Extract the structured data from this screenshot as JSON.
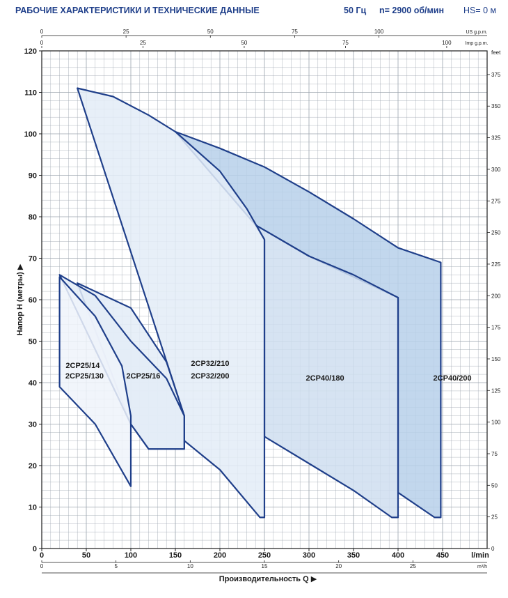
{
  "header": {
    "title": "РАБОЧИЕ ХАРАКТЕРИСТИКИ И ТЕХНИЧЕСКИЕ ДАННЫЕ",
    "frequency": "50 Гц",
    "speed": "n= 2900 об/мин",
    "hs": "HS= 0 м"
  },
  "colors": {
    "outline": "#1f3f8a",
    "fill_light": "#e3ecf7",
    "fill_mid": "#cfdef0",
    "fill_dark": "#b7d0ea",
    "grid": "#9aa3ad",
    "text": "#1f3f8a"
  },
  "chart_data": {
    "type": "area",
    "title": "",
    "xlabel": "Производительность Q",
    "ylabel": "Напор H (метры)",
    "x_unit": "l/min",
    "xlim": [
      0,
      500
    ],
    "ylim": [
      0,
      120
    ],
    "x_ticks": [
      0,
      50,
      100,
      150,
      200,
      250,
      300,
      350,
      400,
      450
    ],
    "y_ticks": [
      0,
      10,
      20,
      30,
      40,
      50,
      60,
      70,
      80,
      90,
      100,
      110,
      120
    ],
    "secondary_axes": {
      "m3h": {
        "label": "m³/h",
        "ticks": [
          0,
          5,
          10,
          15,
          20,
          25
        ]
      },
      "us_gpm": {
        "label": "US g.p.m.",
        "ticks": [
          0,
          25,
          50,
          75,
          100
        ]
      },
      "imp_gpm": {
        "label": "Imp g.p.m.",
        "ticks": [
          0,
          25,
          50,
          75,
          100
        ]
      },
      "feet": {
        "label": "feet",
        "ticks": [
          0,
          25,
          50,
          75,
          100,
          125,
          150,
          175,
          200,
          225,
          250,
          275,
          300,
          325,
          350,
          375
        ]
      }
    },
    "series": [
      {
        "name": "2CP40/200",
        "fill": "dark",
        "outline": [
          [
            150,
            100.5
          ],
          [
            200,
            96.5
          ],
          [
            250,
            92
          ],
          [
            300,
            86
          ],
          [
            350,
            79.5
          ],
          [
            400,
            72.5
          ],
          [
            448,
            69
          ],
          [
            448,
            7.5
          ],
          [
            441,
            7.5
          ],
          [
            400,
            13.5
          ],
          [
            400,
            60.5
          ],
          [
            300,
            70.5
          ],
          [
            240,
            78
          ]
        ]
      },
      {
        "name": "2CP40/180",
        "fill": "mid",
        "outline": [
          [
            240,
            78
          ],
          [
            300,
            70.5
          ],
          [
            350,
            66
          ],
          [
            400,
            60.5
          ],
          [
            400,
            7.5
          ],
          [
            393,
            7.5
          ],
          [
            350,
            14
          ],
          [
            300,
            20.5
          ],
          [
            250,
            27
          ],
          [
            250,
            74.5
          ]
        ]
      },
      {
        "name": "2CP32/210",
        "fill": "light",
        "outline": [
          [
            40,
            111
          ],
          [
            80,
            109
          ],
          [
            120,
            104.5
          ],
          [
            150,
            100.5
          ],
          [
            200,
            91
          ],
          [
            230,
            82
          ],
          [
            250,
            74.5
          ],
          [
            250,
            7.5
          ],
          [
            245,
            7.5
          ],
          [
            200,
            19
          ],
          [
            160,
            26
          ],
          [
            160,
            32
          ]
        ]
      },
      {
        "name": "2CP32/200",
        "fill": "light",
        "outline": [
          [
            40,
            64
          ],
          [
            100,
            58
          ],
          [
            140,
            45
          ],
          [
            160,
            32
          ],
          [
            160,
            24
          ],
          [
            120,
            24
          ],
          [
            100,
            30
          ]
        ]
      },
      {
        "name": "2CP25/16",
        "fill": "light",
        "outline": [
          [
            20,
            66
          ],
          [
            60,
            61
          ],
          [
            100,
            50
          ],
          [
            140,
            41
          ],
          [
            160,
            32
          ],
          [
            160,
            24
          ],
          [
            120,
            24
          ],
          [
            100,
            30
          ]
        ]
      },
      {
        "name": "2CP25/14",
        "fill": "pale",
        "outline": [
          [
            20,
            65.5
          ],
          [
            60,
            56
          ],
          [
            90,
            44
          ],
          [
            100,
            32
          ],
          [
            100,
            15
          ],
          [
            60,
            30
          ],
          [
            20,
            39
          ]
        ]
      },
      {
        "name": "2CP25/130",
        "fill": "pale",
        "outline": []
      }
    ],
    "labels": [
      {
        "text": "2CP25/14",
        "x": 46,
        "y": 43.5
      },
      {
        "text": "2CP25/130",
        "x": 48,
        "y": 41
      },
      {
        "text": "2CP25/16",
        "x": 114,
        "y": 41
      },
      {
        "text": "2CP32/210",
        "x": 189,
        "y": 44
      },
      {
        "text": "2CP32/200",
        "x": 189,
        "y": 41
      },
      {
        "text": "2CP40/180",
        "x": 318,
        "y": 40.5
      },
      {
        "text": "2CP40/200",
        "x": 461,
        "y": 40.5
      }
    ],
    "grid": true
  }
}
